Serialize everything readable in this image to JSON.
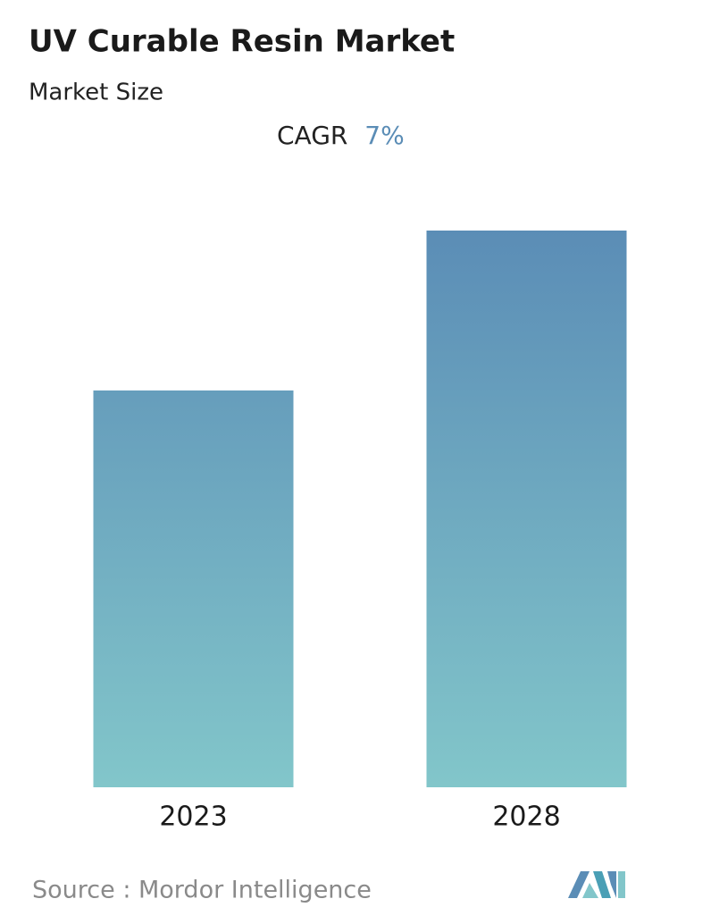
{
  "chart_data": {
    "type": "bar",
    "title": "UV Curable Resin Market",
    "subtitle": "Market Size",
    "cagr_label": "CAGR",
    "cagr_value": "7%",
    "categories": [
      "2023",
      "2028"
    ],
    "values": [
      100,
      140.3
    ],
    "color_top": "#5b8db6",
    "color_bottom": "#82c6ca",
    "source": "Source :  Mordor Intelligence"
  }
}
